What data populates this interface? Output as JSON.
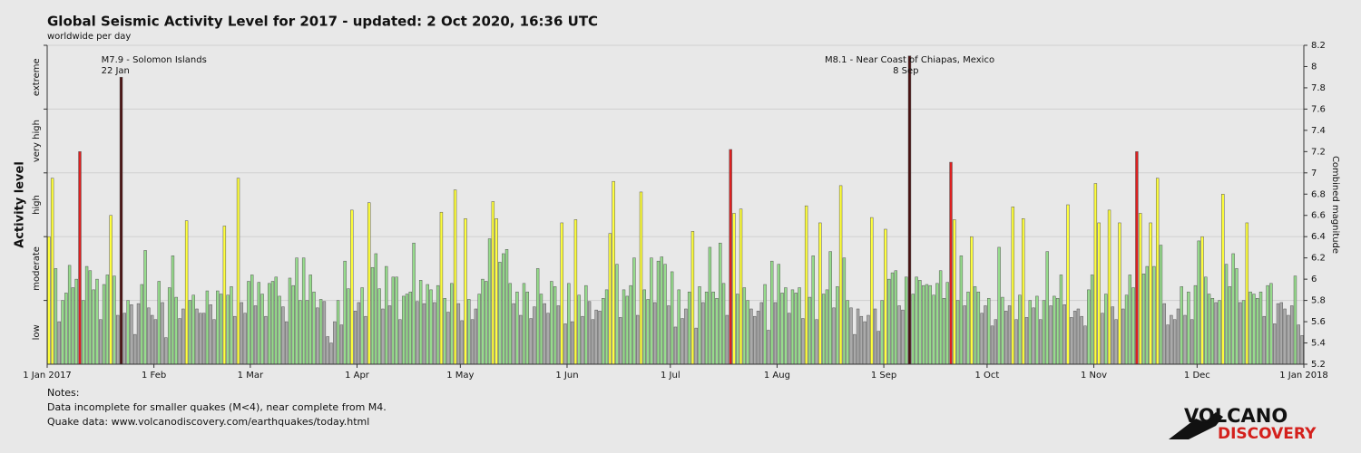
{
  "chart_data": {
    "type": "bar",
    "title": "Global Seismic Activity Level for 2017 - updated:  2 Oct 2020, 16:36 UTC",
    "subtitle": "worldwide per day",
    "ylabel": "Activity level",
    "y2label": "Combined magnitude",
    "ylim": [
      5.2,
      8.2
    ],
    "yticks": [
      5.2,
      5.4,
      5.6,
      5.8,
      6,
      6.2,
      6.4,
      6.6,
      6.8,
      7,
      7.2,
      7.4,
      7.6,
      7.8,
      8,
      8.2
    ],
    "xlim": [
      "2017-01-01",
      "2018-01-01"
    ],
    "xticks": [
      {
        "value": "2017-01-01",
        "label": "1 Jan 2017"
      },
      {
        "value": "2017-02-01",
        "label": "1 Feb"
      },
      {
        "value": "2017-03-01",
        "label": "1 Mar"
      },
      {
        "value": "2017-04-01",
        "label": "1 Apr"
      },
      {
        "value": "2017-05-01",
        "label": "1 May"
      },
      {
        "value": "2017-06-01",
        "label": "1 Jun"
      },
      {
        "value": "2017-07-01",
        "label": "1 Jul"
      },
      {
        "value": "2017-08-01",
        "label": "1 Aug"
      },
      {
        "value": "2017-09-01",
        "label": "1 Sep"
      },
      {
        "value": "2017-10-01",
        "label": "1 Oct"
      },
      {
        "value": "2017-11-01",
        "label": "1 Nov"
      },
      {
        "value": "2017-12-01",
        "label": "1 Dec"
      },
      {
        "value": "2018-01-01",
        "label": "1 Jan 2018"
      }
    ],
    "levels": [
      {
        "name": "low",
        "from": 5.2,
        "to": 5.8,
        "color": "#aaaaaa"
      },
      {
        "name": "moderate",
        "from": 5.8,
        "to": 6.4,
        "color": "#96dc8c"
      },
      {
        "name": "high",
        "from": 6.4,
        "to": 7.0,
        "color": "#ffff3c"
      },
      {
        "name": "very high",
        "from": 7.0,
        "to": 7.6,
        "color": "#dc2020"
      },
      {
        "name": "extreme",
        "from": 7.6,
        "to": 8.2,
        "color": "#4a1010"
      }
    ],
    "annotations": [
      {
        "label": "M7.9 - Solomon Islands",
        "date": "22 Jan"
      },
      {
        "label": "M8.1 - Near Coast of Chiapas, Mexico",
        "date": "8 Sep"
      }
    ],
    "notes": [
      "Notes:",
      "Data incomplete for smaller quakes (M<4), near complete from M4.",
      "Quake data: www.volcanodiscovery.com/earthquakes/today.html"
    ],
    "logo": [
      "VOLCANO",
      "DISCOVERY"
    ],
    "x": [
      "2017-01-01",
      "2017-01-02",
      "2017-01-03",
      "2017-01-04",
      "2017-01-05",
      "2017-01-06",
      "2017-01-07",
      "2017-01-08",
      "2017-01-09",
      "2017-01-10",
      "2017-01-11",
      "2017-01-12",
      "2017-01-13",
      "2017-01-14",
      "2017-01-15",
      "2017-01-16",
      "2017-01-17",
      "2017-01-18",
      "2017-01-19",
      "2017-01-20",
      "2017-01-21",
      "2017-01-22",
      "2017-01-23",
      "2017-01-24",
      "2017-01-25",
      "2017-01-26",
      "2017-01-27",
      "2017-01-28",
      "2017-01-29",
      "2017-01-30",
      "2017-01-31",
      "2017-02-01",
      "2017-02-02",
      "2017-02-03",
      "2017-02-04",
      "2017-02-05",
      "2017-02-06",
      "2017-02-07",
      "2017-02-08",
      "2017-02-09",
      "2017-02-10",
      "2017-02-11",
      "2017-02-12",
      "2017-02-13",
      "2017-02-14",
      "2017-02-15",
      "2017-02-16",
      "2017-02-17",
      "2017-02-18",
      "2017-02-19",
      "2017-02-20",
      "2017-02-21",
      "2017-02-22",
      "2017-02-23",
      "2017-02-24",
      "2017-02-25",
      "2017-02-26",
      "2017-02-27",
      "2017-02-28",
      "2017-03-01",
      "2017-03-02",
      "2017-03-03",
      "2017-03-04",
      "2017-03-05",
      "2017-03-06",
      "2017-03-07",
      "2017-03-08",
      "2017-03-09",
      "2017-03-10",
      "2017-03-11",
      "2017-03-12",
      "2017-03-13",
      "2017-03-14",
      "2017-03-15",
      "2017-03-16",
      "2017-03-17",
      "2017-03-18",
      "2017-03-19",
      "2017-03-20",
      "2017-03-21",
      "2017-03-22",
      "2017-03-23",
      "2017-03-24",
      "2017-03-25",
      "2017-03-26",
      "2017-03-27",
      "2017-03-28",
      "2017-03-29",
      "2017-03-30",
      "2017-03-31",
      "2017-04-01",
      "2017-04-02",
      "2017-04-03",
      "2017-04-04",
      "2017-04-05",
      "2017-04-06",
      "2017-04-07",
      "2017-04-08",
      "2017-04-09",
      "2017-04-10",
      "2017-04-11",
      "2017-04-12",
      "2017-04-13",
      "2017-04-14",
      "2017-04-15",
      "2017-04-16",
      "2017-04-17",
      "2017-04-18",
      "2017-04-19",
      "2017-04-20",
      "2017-04-21",
      "2017-04-22",
      "2017-04-23",
      "2017-04-24",
      "2017-04-25",
      "2017-04-26",
      "2017-04-27",
      "2017-04-28",
      "2017-04-29",
      "2017-04-30",
      "2017-05-01",
      "2017-05-02",
      "2017-05-03",
      "2017-05-04",
      "2017-05-05",
      "2017-05-06",
      "2017-05-07",
      "2017-05-08",
      "2017-05-09",
      "2017-05-10",
      "2017-05-11",
      "2017-05-12",
      "2017-05-13",
      "2017-05-14",
      "2017-05-15",
      "2017-05-16",
      "2017-05-17",
      "2017-05-18",
      "2017-05-19",
      "2017-05-20",
      "2017-05-21",
      "2017-05-22",
      "2017-05-23",
      "2017-05-24",
      "2017-05-25",
      "2017-05-26",
      "2017-05-27",
      "2017-05-28",
      "2017-05-29",
      "2017-05-30",
      "2017-05-31",
      "2017-06-01",
      "2017-06-02",
      "2017-06-03",
      "2017-06-04",
      "2017-06-05",
      "2017-06-06",
      "2017-06-07",
      "2017-06-08",
      "2017-06-09",
      "2017-06-10",
      "2017-06-11",
      "2017-06-12",
      "2017-06-13",
      "2017-06-14",
      "2017-06-15",
      "2017-06-16",
      "2017-06-17",
      "2017-06-18",
      "2017-06-19",
      "2017-06-20",
      "2017-06-21",
      "2017-06-22",
      "2017-06-23",
      "2017-06-24",
      "2017-06-25",
      "2017-06-26",
      "2017-06-27",
      "2017-06-28",
      "2017-06-29",
      "2017-06-30",
      "2017-07-01",
      "2017-07-02",
      "2017-07-03",
      "2017-07-04",
      "2017-07-05",
      "2017-07-06",
      "2017-07-07",
      "2017-07-08",
      "2017-07-09",
      "2017-07-10",
      "2017-07-11",
      "2017-07-12",
      "2017-07-13",
      "2017-07-14",
      "2017-07-15",
      "2017-07-16",
      "2017-07-17",
      "2017-07-18",
      "2017-07-19",
      "2017-07-20",
      "2017-07-21",
      "2017-07-22",
      "2017-07-23",
      "2017-07-24",
      "2017-07-25",
      "2017-07-26",
      "2017-07-27",
      "2017-07-28",
      "2017-07-29",
      "2017-07-30",
      "2017-07-31",
      "2017-08-01",
      "2017-08-02",
      "2017-08-03",
      "2017-08-04",
      "2017-08-05",
      "2017-08-06",
      "2017-08-07",
      "2017-08-08",
      "2017-08-09",
      "2017-08-10",
      "2017-08-11",
      "2017-08-12",
      "2017-08-13",
      "2017-08-14",
      "2017-08-15",
      "2017-08-16",
      "2017-08-17",
      "2017-08-18",
      "2017-08-19",
      "2017-08-20",
      "2017-08-21",
      "2017-08-22",
      "2017-08-23",
      "2017-08-24",
      "2017-08-25",
      "2017-08-26",
      "2017-08-27",
      "2017-08-28",
      "2017-08-29",
      "2017-08-30",
      "2017-08-31",
      "2017-09-01",
      "2017-09-02",
      "2017-09-03",
      "2017-09-04",
      "2017-09-05",
      "2017-09-06",
      "2017-09-07",
      "2017-09-08",
      "2017-09-09",
      "2017-09-10",
      "2017-09-11",
      "2017-09-12",
      "2017-09-13",
      "2017-09-14",
      "2017-09-15",
      "2017-09-16",
      "2017-09-17",
      "2017-09-18",
      "2017-09-19",
      "2017-09-20",
      "2017-09-21",
      "2017-09-22",
      "2017-09-23",
      "2017-09-24",
      "2017-09-25",
      "2017-09-26",
      "2017-09-27",
      "2017-09-28",
      "2017-09-29",
      "2017-09-30",
      "2017-10-01",
      "2017-10-02",
      "2017-10-03",
      "2017-10-04",
      "2017-10-05",
      "2017-10-06",
      "2017-10-07",
      "2017-10-08",
      "2017-10-09",
      "2017-10-10",
      "2017-10-11",
      "2017-10-12",
      "2017-10-13",
      "2017-10-14",
      "2017-10-15",
      "2017-10-16",
      "2017-10-17",
      "2017-10-18",
      "2017-10-19",
      "2017-10-20",
      "2017-10-21",
      "2017-10-22",
      "2017-10-23",
      "2017-10-24",
      "2017-10-25",
      "2017-10-26",
      "2017-10-27",
      "2017-10-28",
      "2017-10-29",
      "2017-10-30",
      "2017-10-31",
      "2017-11-01",
      "2017-11-02",
      "2017-11-03",
      "2017-11-04",
      "2017-11-05",
      "2017-11-06",
      "2017-11-07",
      "2017-11-08",
      "2017-11-09",
      "2017-11-10",
      "2017-11-11",
      "2017-11-12",
      "2017-11-13",
      "2017-11-14",
      "2017-11-15",
      "2017-11-16",
      "2017-11-17",
      "2017-11-18",
      "2017-11-19",
      "2017-11-20",
      "2017-11-21",
      "2017-11-22",
      "2017-11-23",
      "2017-11-24",
      "2017-11-25",
      "2017-11-26",
      "2017-11-27",
      "2017-11-28",
      "2017-11-29",
      "2017-11-30",
      "2017-12-01",
      "2017-12-02",
      "2017-12-03",
      "2017-12-04",
      "2017-12-05",
      "2017-12-06",
      "2017-12-07",
      "2017-12-08",
      "2017-12-09",
      "2017-12-10",
      "2017-12-11",
      "2017-12-12",
      "2017-12-13",
      "2017-12-14",
      "2017-12-15",
      "2017-12-16",
      "2017-12-17",
      "2017-12-18",
      "2017-12-19",
      "2017-12-20",
      "2017-12-21",
      "2017-12-22",
      "2017-12-23",
      "2017-12-24",
      "2017-12-25",
      "2017-12-26",
      "2017-12-27",
      "2017-12-28",
      "2017-12-29",
      "2017-12-30",
      "2017-12-31"
    ],
    "values": [
      6.4,
      6.95,
      6.1,
      5.6,
      5.8,
      5.87,
      6.13,
      5.92,
      6.0,
      7.2,
      5.8,
      6.12,
      6.08,
      5.9,
      6.0,
      5.62,
      5.95,
      6.04,
      6.6,
      6.03,
      5.66,
      7.9,
      5.68,
      5.8,
      5.76,
      5.48,
      5.77,
      5.95,
      6.27,
      5.73,
      5.66,
      5.62,
      5.98,
      5.78,
      5.45,
      5.92,
      6.22,
      5.83,
      5.63,
      5.72,
      6.55,
      5.8,
      5.85,
      5.72,
      5.68,
      5.68,
      5.89,
      5.76,
      5.62,
      5.89,
      5.86,
      6.5,
      5.85,
      5.93,
      5.65,
      6.95,
      5.78,
      5.68,
      5.98,
      6.04,
      5.75,
      5.97,
      5.86,
      5.65,
      5.96,
      5.98,
      6.02,
      5.84,
      5.74,
      5.6,
      6.01,
      5.94,
      6.2,
      5.8,
      6.2,
      5.8,
      6.04,
      5.88,
      5.73,
      5.81,
      5.79,
      5.46,
      5.4,
      5.6,
      5.8,
      5.57,
      6.17,
      5.91,
      6.65,
      5.7,
      5.78,
      5.92,
      5.65,
      6.72,
      6.11,
      6.24,
      5.91,
      5.72,
      6.12,
      5.75,
      6.02,
      6.02,
      5.62,
      5.84,
      5.86,
      5.88,
      6.34,
      5.79,
      5.99,
      5.77,
      5.95,
      5.9,
      5.78,
      5.94,
      6.63,
      5.82,
      5.69,
      5.96,
      6.84,
      5.77,
      5.61,
      6.57,
      5.81,
      5.62,
      5.72,
      5.86,
      6.0,
      5.98,
      6.38,
      6.73,
      6.57,
      6.16,
      6.24,
      6.28,
      5.96,
      5.77,
      5.88,
      5.66,
      5.96,
      5.88,
      5.63,
      5.74,
      6.1,
      5.86,
      5.77,
      5.68,
      5.98,
      5.93,
      5.75,
      6.53,
      5.58,
      5.96,
      5.6,
      6.56,
      5.85,
      5.65,
      5.94,
      5.79,
      5.62,
      5.71,
      5.7,
      5.82,
      5.9,
      6.43,
      6.92,
      6.14,
      5.64,
      5.9,
      5.84,
      5.94,
      6.2,
      5.66,
      6.82,
      5.9,
      5.81,
      6.2,
      5.78,
      6.17,
      6.21,
      6.14,
      5.75,
      6.07,
      5.55,
      5.9,
      5.63,
      5.72,
      5.88,
      6.45,
      5.54,
      5.93,
      5.78,
      5.88,
      6.3,
      5.88,
      5.82,
      6.34,
      5.96,
      5.66,
      7.22,
      6.62,
      5.86,
      6.66,
      5.92,
      5.8,
      5.72,
      5.65,
      5.7,
      5.78,
      5.95,
      5.52,
      6.17,
      5.78,
      6.14,
      5.87,
      5.92,
      5.68,
      5.9,
      5.87,
      5.92,
      5.63,
      6.69,
      5.83,
      6.22,
      5.62,
      6.53,
      5.86,
      5.9,
      6.26,
      5.73,
      5.93,
      6.88,
      6.2,
      5.8,
      5.73,
      5.48,
      5.72,
      5.65,
      5.6,
      5.66,
      6.58,
      5.72,
      5.51,
      5.8,
      6.47,
      6.0,
      6.06,
      6.08,
      5.75,
      5.71,
      6.02,
      8.1,
      5.86,
      6.02,
      5.99,
      5.94,
      5.95,
      5.94,
      5.85,
      5.96,
      6.08,
      5.82,
      5.97,
      7.1,
      6.56,
      5.8,
      6.22,
      5.75,
      5.88,
      6.4,
      5.93,
      5.88,
      5.68,
      5.75,
      5.82,
      5.56,
      5.62,
      6.3,
      5.83,
      5.7,
      5.75,
      6.68,
      5.62,
      5.85,
      6.57,
      5.64,
      5.8,
      5.73,
      5.84,
      5.62,
      5.8,
      6.26,
      5.75,
      5.84,
      5.82,
      6.04,
      5.76,
      6.7,
      5.64,
      5.7,
      5.72,
      5.65,
      5.56,
      5.9,
      6.04,
      6.9,
      6.53,
      5.68,
      5.86,
      6.65,
      5.74,
      5.62,
      6.53,
      5.72,
      5.85,
      6.04,
      5.92,
      7.2,
      6.62,
      6.05,
      6.12,
      6.53,
      6.12,
      6.95,
      6.32,
      5.77,
      5.57,
      5.66,
      5.62,
      5.72,
      5.93,
      5.66,
      5.88,
      5.62,
      5.94,
      6.36,
      6.4,
      6.02,
      5.86,
      5.82,
      5.78,
      5.8,
      6.8,
      6.14,
      5.93,
      6.24,
      6.1,
      5.78,
      5.8,
      6.53,
      5.88,
      5.86,
      5.82,
      5.88,
      5.65,
      5.94,
      5.96,
      5.58,
      5.77,
      5.78,
      5.72,
      5.66,
      5.75,
      6.03,
      5.57,
      5.47
    ]
  }
}
